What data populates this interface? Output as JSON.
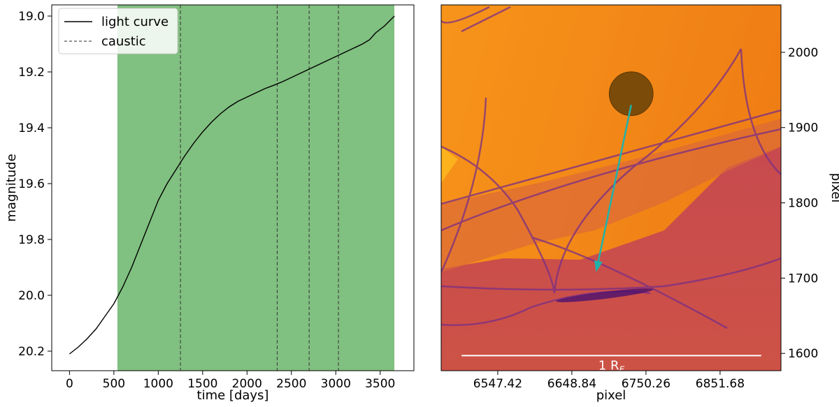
{
  "chart_data": [
    {
      "type": "line",
      "xlabel": "time [days]",
      "ylabel": "magnitude",
      "xlim": [
        -200,
        3880
      ],
      "ylim": [
        20.27,
        18.96
      ],
      "y_inverted": true,
      "x_ticks": [
        0,
        500,
        1000,
        1500,
        2000,
        2500,
        3000,
        3500
      ],
      "y_ticks": [
        19.0,
        19.2,
        19.4,
        19.6,
        19.8,
        20.0,
        20.2
      ],
      "y_tick_labels": [
        "19.0",
        "19.2",
        "19.4",
        "19.6",
        "19.8",
        "20.0",
        "20.2"
      ],
      "shaded_region": {
        "x_start": 540,
        "x_end": 3660,
        "color": "#80c080"
      },
      "legend": {
        "position": "top-left",
        "entries": [
          {
            "label": "light curve",
            "style": "solid",
            "color": "#000000"
          },
          {
            "label": "caustic",
            "style": "dashed",
            "color": "#555555"
          }
        ]
      },
      "series": [
        {
          "name": "light curve",
          "color": "#000000",
          "points": [
            [
              0,
              20.21
            ],
            [
              100,
              20.185
            ],
            [
              200,
              20.155
            ],
            [
              300,
              20.12
            ],
            [
              400,
              20.075
            ],
            [
              500,
              20.03
            ],
            [
              600,
              19.97
            ],
            [
              700,
              19.9
            ],
            [
              800,
              19.82
            ],
            [
              900,
              19.74
            ],
            [
              1000,
              19.66
            ],
            [
              1100,
              19.6
            ],
            [
              1200,
              19.55
            ],
            [
              1300,
              19.5
            ],
            [
              1400,
              19.455
            ],
            [
              1500,
              19.415
            ],
            [
              1600,
              19.38
            ],
            [
              1700,
              19.35
            ],
            [
              1800,
              19.325
            ],
            [
              1900,
              19.305
            ],
            [
              2000,
              19.29
            ],
            [
              2100,
              19.275
            ],
            [
              2200,
              19.26
            ],
            [
              2300,
              19.248
            ],
            [
              2400,
              19.235
            ],
            [
              2500,
              19.22
            ],
            [
              2600,
              19.205
            ],
            [
              2700,
              19.19
            ],
            [
              2800,
              19.175
            ],
            [
              2900,
              19.16
            ],
            [
              3000,
              19.145
            ],
            [
              3100,
              19.13
            ],
            [
              3200,
              19.115
            ],
            [
              3300,
              19.1
            ],
            [
              3380,
              19.085
            ],
            [
              3450,
              19.06
            ],
            [
              3550,
              19.035
            ],
            [
              3660,
              19.0
            ]
          ]
        }
      ],
      "caustic_lines": [
        1250,
        2340,
        2700,
        3030
      ]
    },
    {
      "type": "heatmap",
      "xlabel": "pixel",
      "ylabel": "pixel",
      "ylabel_position": "right",
      "x_ticks": [
        6547.42,
        6648.84,
        6750.26,
        6851.68
      ],
      "x_tick_labels": [
        "6547.42",
        "6648.84",
        "6750.26",
        "6851.68"
      ],
      "y_ticks": [
        1600,
        1700,
        1800,
        1900,
        2000
      ],
      "xlim": [
        6470,
        6935
      ],
      "ylim": [
        1577,
        2063
      ],
      "colormap": "inferno-orange",
      "source": {
        "x": 6730,
        "y": 1945,
        "radius": 30,
        "color": "#6e4508"
      },
      "arrow": {
        "from": [
          6730,
          1930
        ],
        "to": [
          6682,
          1708
        ],
        "color": "#20b2aa"
      },
      "scalebar": {
        "label": "1 R",
        "subscript": "E",
        "x_start": 6498,
        "x_end": 6908,
        "y": 1597,
        "color": "#ffffff"
      }
    }
  ]
}
